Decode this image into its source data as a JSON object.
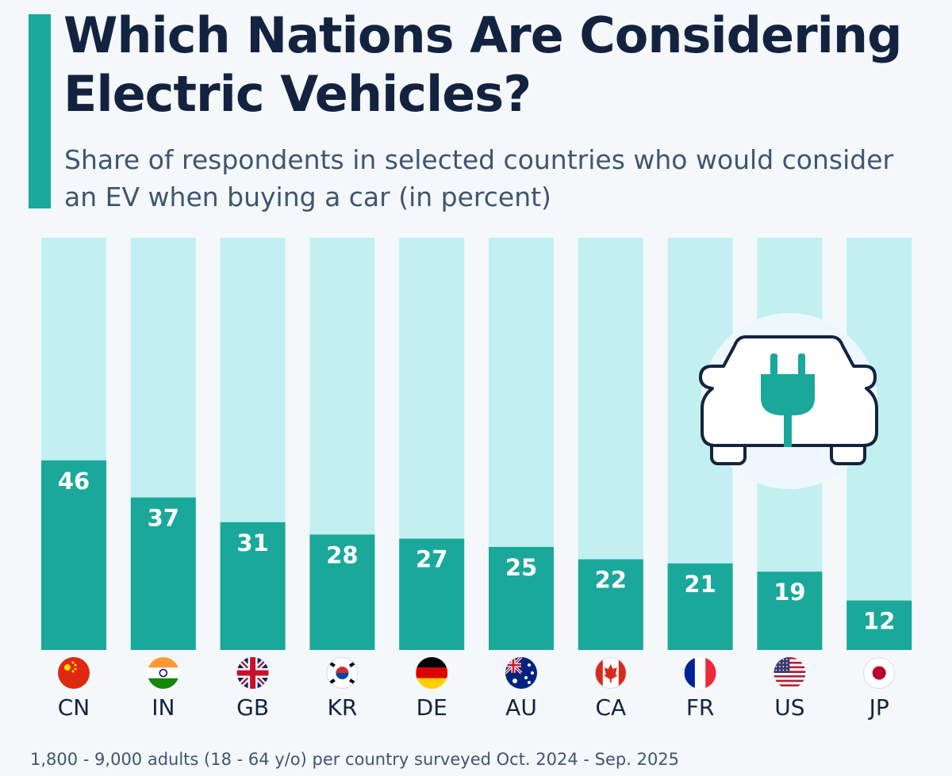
{
  "header": {
    "title": "Which Nations Are Considering Electric Vehicles?",
    "subtitle": "Share of respondents in selected countries who would consider an EV when buying a car (in percent)"
  },
  "footnote": "1,800 - 9,000 adults (18 - 64 y/o) per country surveyed Oct. 2024 - Sep. 2025",
  "icons": {
    "ev": "ev-car-plug-icon",
    "flags": "country-flag-icon"
  },
  "colors": {
    "bar": "#1aa89a",
    "track": "#c2f0f1",
    "label_on_bar": "#ffffff",
    "text_dark": "#13233f",
    "icon_outline": "#13233f"
  },
  "chart_data": {
    "type": "bar",
    "title": "Which Nations Are Considering Electric Vehicles?",
    "subtitle": "Share of respondents in selected countries who would consider an EV when buying a car (in percent)",
    "xlabel": "",
    "ylabel": "",
    "ylim": [
      0,
      100
    ],
    "grid": false,
    "legend": "none",
    "categories": [
      "CN",
      "IN",
      "GB",
      "KR",
      "DE",
      "AU",
      "CA",
      "FR",
      "US",
      "JP"
    ],
    "values": [
      46,
      37,
      31,
      28,
      27,
      25,
      22,
      21,
      19,
      12
    ]
  }
}
